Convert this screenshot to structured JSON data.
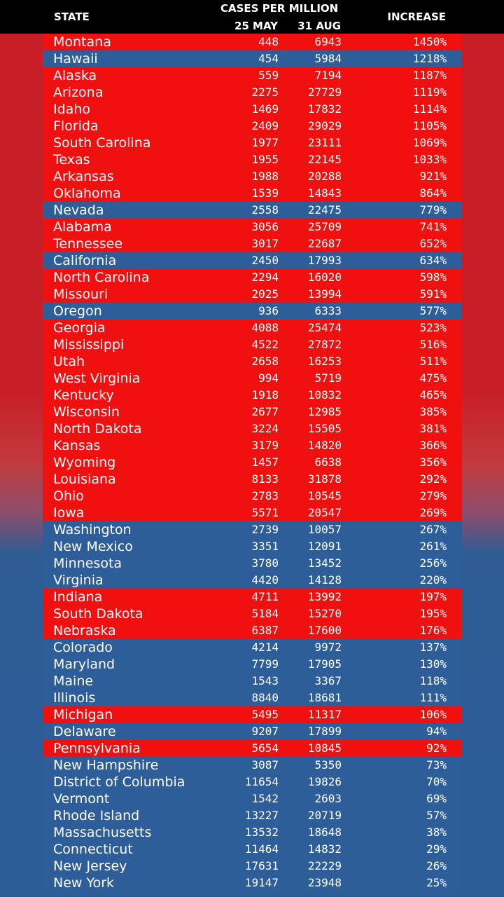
{
  "header": {
    "state": "STATE",
    "cases_per_million": "CASES PER MILLION",
    "may": "25 MAY",
    "aug": "31 AUG",
    "increase": "INCREASE"
  },
  "colors": {
    "red": "#f01010",
    "blue": "#2d5e99",
    "header_bg": "#000000",
    "text": "#ffffff"
  },
  "chart_data": {
    "type": "table",
    "columns": [
      "STATE",
      "25 MAY",
      "31 AUG",
      "INCREASE"
    ],
    "column_group": "CASES PER MILLION",
    "rows": [
      {
        "state": "Montana",
        "may": "448",
        "aug": "6943",
        "increase": "1450%",
        "color": "red"
      },
      {
        "state": "Hawaii",
        "may": "454",
        "aug": "5984",
        "increase": "1218%",
        "color": "blue"
      },
      {
        "state": "Alaska",
        "may": "559",
        "aug": "7194",
        "increase": "1187%",
        "color": "red"
      },
      {
        "state": "Arizona",
        "may": "2275",
        "aug": "27729",
        "increase": "1119%",
        "color": "red"
      },
      {
        "state": "Idaho",
        "may": "1469",
        "aug": "17832",
        "increase": "1114%",
        "color": "red"
      },
      {
        "state": "Florida",
        "may": "2409",
        "aug": "29029",
        "increase": "1105%",
        "color": "red"
      },
      {
        "state": "South Carolina",
        "may": "1977",
        "aug": "23111",
        "increase": "1069%",
        "color": "red"
      },
      {
        "state": "Texas",
        "may": "1955",
        "aug": "22145",
        "increase": "1033%",
        "color": "red"
      },
      {
        "state": "Arkansas",
        "may": "1988",
        "aug": "20288",
        "increase": "921%",
        "color": "red"
      },
      {
        "state": "Oklahoma",
        "may": "1539",
        "aug": "14843",
        "increase": "864%",
        "color": "red"
      },
      {
        "state": "Nevada",
        "may": "2558",
        "aug": "22475",
        "increase": "779%",
        "color": "blue"
      },
      {
        "state": "Alabama",
        "may": "3056",
        "aug": "25709",
        "increase": "741%",
        "color": "red"
      },
      {
        "state": "Tennessee",
        "may": "3017",
        "aug": "22687",
        "increase": "652%",
        "color": "red"
      },
      {
        "state": "California",
        "may": "2450",
        "aug": "17993",
        "increase": "634%",
        "color": "blue"
      },
      {
        "state": "North Carolina",
        "may": "2294",
        "aug": "16020",
        "increase": "598%",
        "color": "red"
      },
      {
        "state": "Missouri",
        "may": "2025",
        "aug": "13994",
        "increase": "591%",
        "color": "red"
      },
      {
        "state": "Oregon",
        "may": "936",
        "aug": "6333",
        "increase": "577%",
        "color": "blue"
      },
      {
        "state": "Georgia",
        "may": "4088",
        "aug": "25474",
        "increase": "523%",
        "color": "red"
      },
      {
        "state": "Mississippi",
        "may": "4522",
        "aug": "27872",
        "increase": "516%",
        "color": "red"
      },
      {
        "state": "Utah",
        "may": "2658",
        "aug": "16253",
        "increase": "511%",
        "color": "red"
      },
      {
        "state": "West Virginia",
        "may": "994",
        "aug": "5719",
        "increase": "475%",
        "color": "red"
      },
      {
        "state": "Kentucky",
        "may": "1918",
        "aug": "10832",
        "increase": "465%",
        "color": "red"
      },
      {
        "state": "Wisconsin",
        "may": "2677",
        "aug": "12985",
        "increase": "385%",
        "color": "red"
      },
      {
        "state": "North Dakota",
        "may": "3224",
        "aug": "15505",
        "increase": "381%",
        "color": "red"
      },
      {
        "state": "Kansas",
        "may": "3179",
        "aug": "14820",
        "increase": "366%",
        "color": "red"
      },
      {
        "state": "Wyoming",
        "may": "1457",
        "aug": "6638",
        "increase": "356%",
        "color": "red"
      },
      {
        "state": "Louisiana",
        "may": "8133",
        "aug": "31878",
        "increase": "292%",
        "color": "red"
      },
      {
        "state": "Ohio",
        "may": "2783",
        "aug": "10545",
        "increase": "279%",
        "color": "red"
      },
      {
        "state": "Iowa",
        "may": "5571",
        "aug": "20547",
        "increase": "269%",
        "color": "red"
      },
      {
        "state": "Washington",
        "may": "2739",
        "aug": "10057",
        "increase": "267%",
        "color": "blue"
      },
      {
        "state": "New Mexico",
        "may": "3351",
        "aug": "12091",
        "increase": "261%",
        "color": "blue"
      },
      {
        "state": "Minnesota",
        "may": "3780",
        "aug": "13452",
        "increase": "256%",
        "color": "blue"
      },
      {
        "state": "Virginia",
        "may": "4420",
        "aug": "14128",
        "increase": "220%",
        "color": "blue"
      },
      {
        "state": "Indiana",
        "may": "4711",
        "aug": "13992",
        "increase": "197%",
        "color": "red"
      },
      {
        "state": "South Dakota",
        "may": "5184",
        "aug": "15270",
        "increase": "195%",
        "color": "red"
      },
      {
        "state": "Nebraska",
        "may": "6387",
        "aug": "17600",
        "increase": "176%",
        "color": "red"
      },
      {
        "state": "Colorado",
        "may": "4214",
        "aug": "9972",
        "increase": "137%",
        "color": "blue"
      },
      {
        "state": "Maryland",
        "may": "7799",
        "aug": "17905",
        "increase": "130%",
        "color": "blue"
      },
      {
        "state": "Maine",
        "may": "1543",
        "aug": "3367",
        "increase": "118%",
        "color": "blue"
      },
      {
        "state": "Illinois",
        "may": "8840",
        "aug": "18681",
        "increase": "111%",
        "color": "blue"
      },
      {
        "state": "Michigan",
        "may": "5495",
        "aug": "11317",
        "increase": "106%",
        "color": "red"
      },
      {
        "state": "Delaware",
        "may": "9207",
        "aug": "17899",
        "increase": "94%",
        "color": "blue"
      },
      {
        "state": "Pennsylvania",
        "may": "5654",
        "aug": "10845",
        "increase": "92%",
        "color": "red"
      },
      {
        "state": "New Hampshire",
        "may": "3087",
        "aug": "5350",
        "increase": "73%",
        "color": "blue"
      },
      {
        "state": "District of Columbia",
        "may": "11654",
        "aug": "19826",
        "increase": "70%",
        "color": "blue"
      },
      {
        "state": "Vermont",
        "may": "1542",
        "aug": "2603",
        "increase": "69%",
        "color": "blue"
      },
      {
        "state": "Rhode Island",
        "may": "13227",
        "aug": "20719",
        "increase": "57%",
        "color": "blue"
      },
      {
        "state": "Massachusetts",
        "may": "13532",
        "aug": "18648",
        "increase": "38%",
        "color": "blue"
      },
      {
        "state": "Connecticut",
        "may": "11464",
        "aug": "14832",
        "increase": "29%",
        "color": "blue"
      },
      {
        "state": "New Jersey",
        "may": "17631",
        "aug": "22229",
        "increase": "26%",
        "color": "blue"
      },
      {
        "state": "New York",
        "may": "19147",
        "aug": "23948",
        "increase": "25%",
        "color": "blue"
      }
    ]
  }
}
